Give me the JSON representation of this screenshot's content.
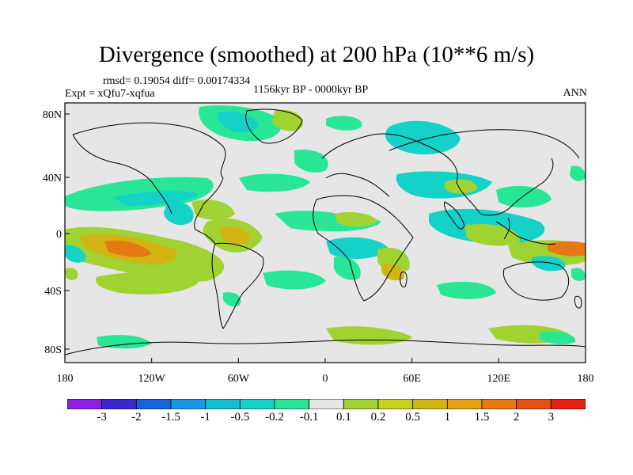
{
  "title": "Divergence (smoothed) at 200 hPa (10**6 m/s)",
  "stats": "rmsd= 0.19054  diff= 0.00174334",
  "experiment": "Expt = xQfu7-xqfua",
  "period": "1156kyr BP - 0000kyr BP",
  "season": "ANN",
  "map": {
    "projection": "cylindrical-equidistant",
    "background_color": "#e6e6e6",
    "lat_ticks": [
      "80N",
      "40N",
      "0",
      "40S",
      "80S"
    ],
    "lon_ticks": [
      "180",
      "120W",
      "60W",
      "0",
      "60E",
      "120E",
      "180"
    ]
  },
  "colorbar": {
    "colors": [
      "#8c1ee6",
      "#3c28d2",
      "#1464dc",
      "#1e96e6",
      "#14bed2",
      "#14d2c8",
      "#28e696",
      "#e6e6e6",
      "#a0d232",
      "#c8d21e",
      "#d2b414",
      "#e6a014",
      "#e67814",
      "#e65014",
      "#e61e14"
    ],
    "labels": [
      "-3",
      "-2",
      "-1.5",
      "-1",
      "-0.5",
      "-0.2",
      "-0.1",
      "0.1",
      "0.2",
      "0.5",
      "1",
      "1.5",
      "2",
      "3"
    ]
  }
}
